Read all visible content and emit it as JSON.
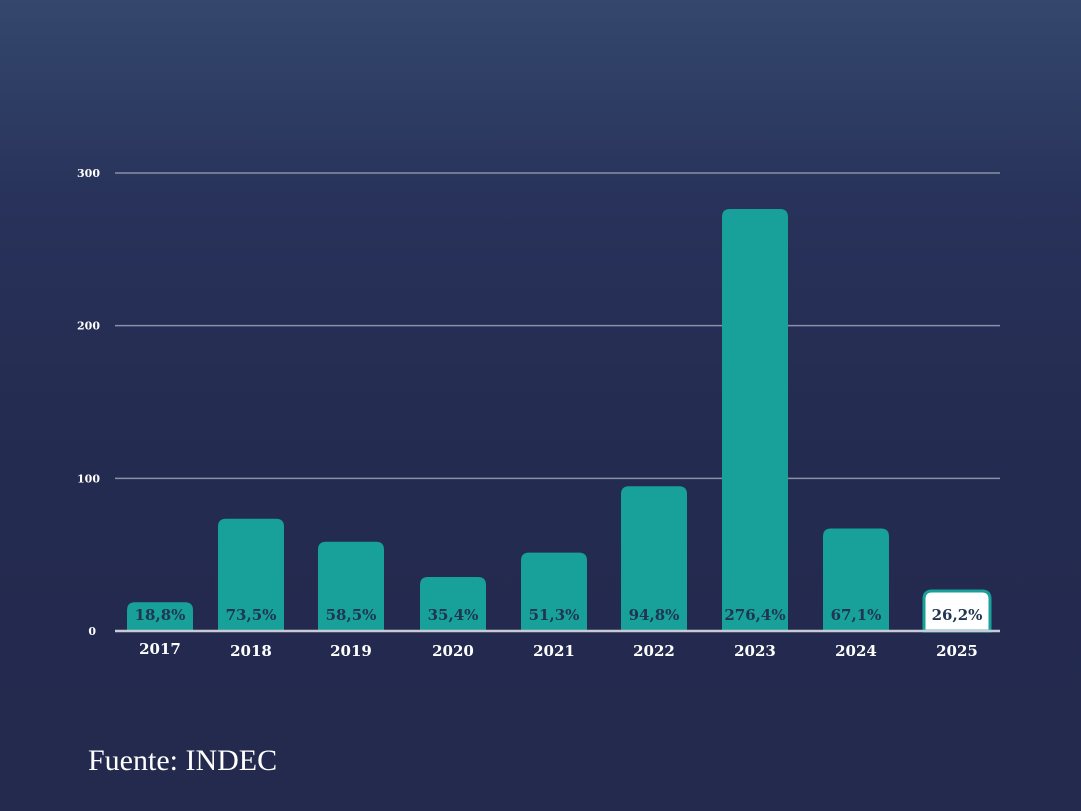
{
  "chart_data": {
    "type": "bar",
    "categories": [
      "2017",
      "2018",
      "2019",
      "2020",
      "2021",
      "2022",
      "2023",
      "2024",
      "2025"
    ],
    "values": [
      18.8,
      73.5,
      58.5,
      35.4,
      51.3,
      94.8,
      276.4,
      67.1,
      26.2
    ],
    "data_labels": [
      "18,8%",
      "73,5%",
      "58,5%",
      "35,4%",
      "51,3%",
      "94,8%",
      "276,4%",
      "67,1%",
      "26,2%"
    ],
    "yticks": [
      0,
      100,
      200,
      300
    ],
    "ylim": [
      0,
      300
    ],
    "grid": true,
    "highlight_index": 8,
    "colors": {
      "bar": "#17a19a",
      "highlight_fill": "#ffffff",
      "label": "#1f3550",
      "grid": "#8a90a8",
      "axis": "#c8cad6"
    }
  },
  "source": "Fuente: INDEC"
}
